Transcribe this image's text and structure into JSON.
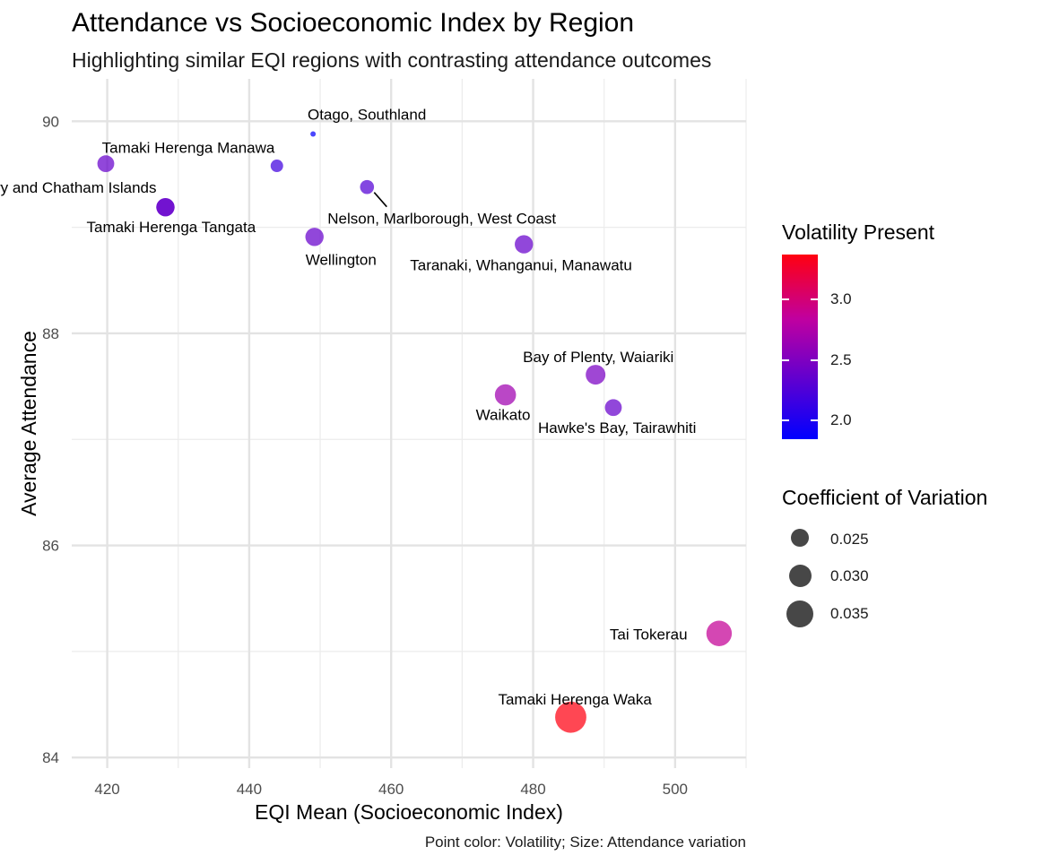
{
  "chart_data": {
    "type": "scatter",
    "title": "Attendance vs Socioeconomic Index by Region",
    "subtitle": "Highlighting similar EQI regions with contrasting attendance outcomes",
    "caption": "Point color: Volatility; Size: Attendance variation",
    "xlabel": "EQI Mean (Socioeconomic Index)",
    "ylabel": "Average Attendance",
    "xlim": [
      415,
      510
    ],
    "ylim": [
      83.9,
      90.4
    ],
    "x_ticks": [
      420,
      440,
      460,
      480,
      500
    ],
    "y_ticks": [
      84,
      86,
      88,
      90
    ],
    "grid": true,
    "points": [
      {
        "label": "Otago, Southland",
        "x": 449.0,
        "y": 89.88,
        "volatility": 1.9,
        "cv": 0.02
      },
      {
        "label": "Tamaki Herenga Manawa",
        "x": 419.8,
        "y": 89.6,
        "volatility": 2.4,
        "cv": 0.028
      },
      {
        "label": "",
        "x": 443.9,
        "y": 89.58,
        "volatility": 2.2,
        "cv": 0.025
      },
      {
        "label": "Canterbury and Chatham Islands",
        "x": 428.2,
        "y": 89.19,
        "volatility": 2.4,
        "cv": 0.029
      },
      {
        "label": "Nelson, Marlborough, West Coast",
        "x": 456.6,
        "y": 89.38,
        "volatility": 2.3,
        "cv": 0.026
      },
      {
        "label": "Tamaki Herenga Tangata",
        "x": 428.2,
        "y": 89.19,
        "volatility": 2.4,
        "cv": 0.029
      },
      {
        "label": "Wellington",
        "x": 449.2,
        "y": 88.91,
        "volatility": 2.4,
        "cv": 0.029
      },
      {
        "label": "Taranaki, Whanganui, Manawatu",
        "x": 478.7,
        "y": 88.84,
        "volatility": 2.4,
        "cv": 0.029
      },
      {
        "label": "Bay of Plenty, Waiariki",
        "x": 488.8,
        "y": 87.61,
        "volatility": 2.5,
        "cv": 0.03
      },
      {
        "label": "Waikato",
        "x": 476.1,
        "y": 87.42,
        "volatility": 2.7,
        "cv": 0.031
      },
      {
        "label": "Hawke's Bay, Tairawhiti",
        "x": 491.3,
        "y": 87.3,
        "volatility": 2.4,
        "cv": 0.028
      },
      {
        "label": "Tai Tokerau",
        "x": 506.2,
        "y": 85.17,
        "volatility": 2.9,
        "cv": 0.034
      },
      {
        "label": "Tamaki Herenga Waka",
        "x": 485.3,
        "y": 84.38,
        "volatility": 3.4,
        "cv": 0.038
      }
    ],
    "legend": {
      "color": {
        "title": "Volatility Present",
        "labels": [
          "3.0",
          "2.5",
          "2.0"
        ],
        "range": [
          1.87,
          3.4
        ],
        "colors": [
          "#0000ff",
          "#c000a0",
          "#ff0010"
        ]
      },
      "size": {
        "title": "Coefficient of Variation",
        "labels": [
          "0.025",
          "0.030",
          "0.035"
        ]
      },
      "placement": "right"
    }
  }
}
